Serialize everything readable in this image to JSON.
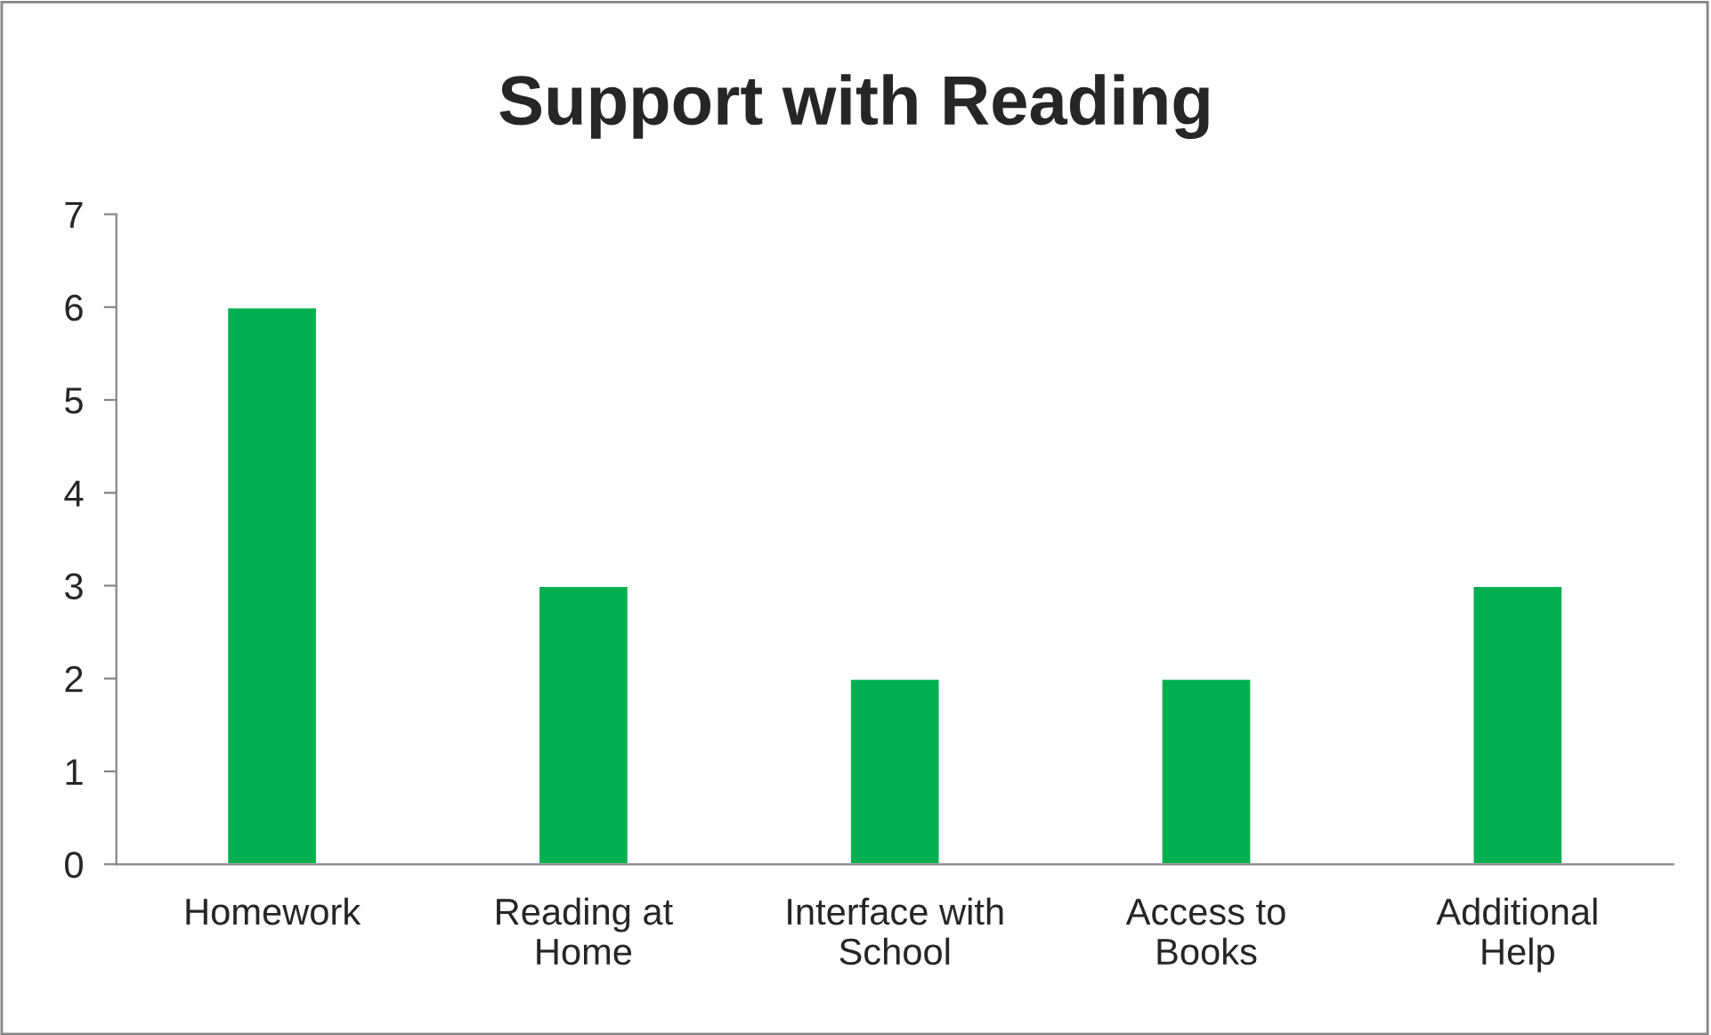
{
  "chart_data": {
    "type": "bar",
    "title": "Support with Reading",
    "categories": [
      "Homework",
      "Reading at Home",
      "Interface with School",
      "Access to Books",
      "Additional Help"
    ],
    "values": [
      6,
      3,
      2,
      2,
      3
    ],
    "color": "#00b050",
    "ylim": [
      0,
      7
    ],
    "yticks": [
      0,
      1,
      2,
      3,
      4,
      5,
      6,
      7
    ],
    "grid": false,
    "legend": false
  }
}
